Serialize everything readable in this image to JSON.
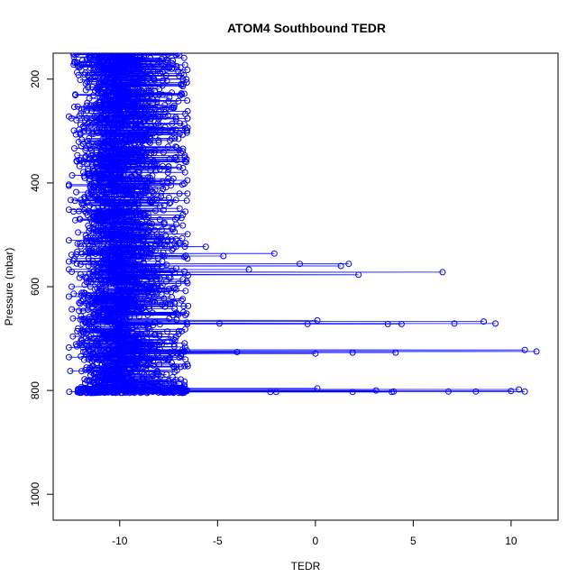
{
  "chart_data": {
    "type": "scatter",
    "title": "ATOM4 Southbound TEDR",
    "xlabel": "TEDR",
    "ylabel": "Pressure (mbar)",
    "xlim": [
      -13.4,
      12.4
    ],
    "ylim": [
      1050,
      150
    ],
    "y_reversed": true,
    "x_ticks": [
      -10,
      -5,
      0,
      5,
      10
    ],
    "x_tick_labels": [
      "-10",
      "-5",
      "0",
      "5",
      "10"
    ],
    "y_ticks": [
      200,
      400,
      600,
      800,
      1000
    ],
    "y_tick_labels": [
      "200",
      "400",
      "600",
      "800",
      "1000"
    ],
    "grid": false,
    "legend": "none",
    "marker": "open-circle",
    "connect_points": true,
    "color": "#0000ff",
    "main_band": {
      "p_min": 150,
      "p_max": 805,
      "x_left_edge": -12.2,
      "x_center": -10.3,
      "x_right_edge": -6.5
    },
    "outliers": [
      {
        "x": -2.1,
        "y": 536
      },
      {
        "x": -4.7,
        "y": 541
      },
      {
        "x": -5.6,
        "y": 523
      },
      {
        "x": -0.8,
        "y": 556
      },
      {
        "x": 1.3,
        "y": 560
      },
      {
        "x": 1.7,
        "y": 556
      },
      {
        "x": -3.4,
        "y": 567
      },
      {
        "x": 2.2,
        "y": 577
      },
      {
        "x": 6.5,
        "y": 572
      },
      {
        "x": 0.1,
        "y": 665
      },
      {
        "x": -0.4,
        "y": 672
      },
      {
        "x": 3.7,
        "y": 672
      },
      {
        "x": 4.4,
        "y": 672
      },
      {
        "x": 7.1,
        "y": 671
      },
      {
        "x": 8.6,
        "y": 667
      },
      {
        "x": 9.2,
        "y": 671
      },
      {
        "x": -4.9,
        "y": 671
      },
      {
        "x": -4.0,
        "y": 726
      },
      {
        "x": 0.0,
        "y": 729
      },
      {
        "x": 1.9,
        "y": 727
      },
      {
        "x": 4.1,
        "y": 727
      },
      {
        "x": 10.7,
        "y": 722
      },
      {
        "x": 11.3,
        "y": 725
      },
      {
        "x": 0.1,
        "y": 796
      },
      {
        "x": 3.1,
        "y": 800
      },
      {
        "x": 3.9,
        "y": 803
      },
      {
        "x": 4.0,
        "y": 802
      },
      {
        "x": 6.8,
        "y": 802
      },
      {
        "x": 8.2,
        "y": 802
      },
      {
        "x": 10.0,
        "y": 801
      },
      {
        "x": 10.4,
        "y": 798
      },
      {
        "x": 10.7,
        "y": 802
      },
      {
        "x": -2.3,
        "y": 803
      },
      {
        "x": -2.0,
        "y": 803
      },
      {
        "x": 1.9,
        "y": 803
      }
    ]
  }
}
